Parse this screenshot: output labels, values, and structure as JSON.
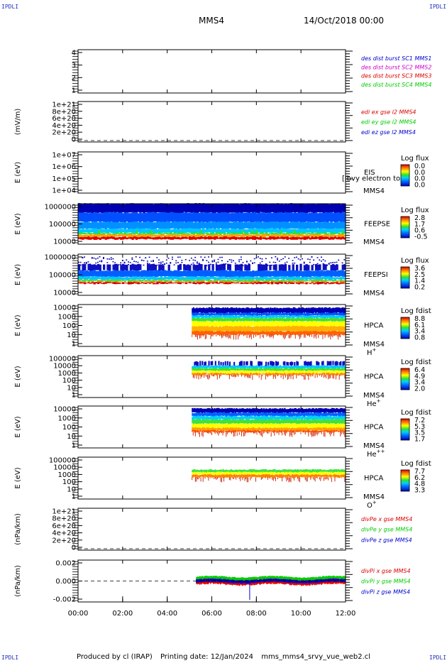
{
  "corner_label": "IPDLI",
  "header": {
    "spacecraft": "MMS4",
    "datetime": "14/Oct/2018 00:00"
  },
  "footer": {
    "produced_by": "Produced by cl (IRAP)",
    "printing_date": "Printing date: 12/Jan/2024",
    "filename": "mms_mms4_srvy_vue_web2.cl"
  },
  "colors": {
    "blue": "#0000cc",
    "magenta": "#cc00cc",
    "red": "#dd0000",
    "green": "#00cc00"
  },
  "chart_data": {
    "type": "stacked-panels",
    "x_range_hours": [
      0,
      12
    ],
    "x_tick_labels": [
      "00:00",
      "02:00",
      "04:00",
      "06:00",
      "08:00",
      "10:00",
      "12:00"
    ],
    "panels": [
      {
        "id": "dist",
        "kind": "line",
        "ylabel": "",
        "y_ticks": [
          "4",
          "3",
          "2",
          "1"
        ],
        "legend": [
          {
            "text": "des dist burst SC1 MMS1",
            "color": "#0000cc"
          },
          {
            "text": "des dist burst SC2 MMS2",
            "color": "#cc00cc"
          },
          {
            "text": "des dist burst SC3 MMS3",
            "color": "#dd0000"
          },
          {
            "text": "des dist burst SC4 MMS4",
            "color": "#00cc00"
          }
        ]
      },
      {
        "id": "edi",
        "kind": "line",
        "ylabel": "(mV/m)",
        "y_ticks": [
          "1e+21",
          "8e+20",
          "6e+20",
          "4e+20",
          "2e+20",
          "0"
        ],
        "zero_line": true,
        "legend": [
          {
            "text": "edi ex gse l2 MMS4",
            "color": "#dd0000"
          },
          {
            "text": "edi ey gse l2 MMS4",
            "color": "#00cc00"
          },
          {
            "text": "edi ez gse l2 MMS4",
            "color": "#0000cc"
          }
        ]
      },
      {
        "id": "eis",
        "kind": "spectrogram",
        "ylabel": "E (eV)",
        "y_ticks": [
          "1e+07",
          "1e+06",
          "1e+05",
          "1e+04"
        ],
        "right_labels": [
          "EIS",
          "MMS4"
        ],
        "overlay_text": "[lbvy electron to",
        "colorbar": {
          "title": "Log flux",
          "ticks": [
            "0.0",
            "0.0",
            "0.0",
            "0.0"
          ]
        }
      },
      {
        "id": "feeps_e",
        "kind": "spectrogram",
        "ylabel": "E (eV)",
        "y_ticks": [
          "1000000",
          "100000",
          "10000"
        ],
        "right_labels": [
          "FEEPSE",
          "MMS4"
        ],
        "data_hours": [
          0.0,
          12.0
        ],
        "colorbar": {
          "title": "Log flux",
          "ticks": [
            "2.8",
            "1.7",
            "0.6",
            "-0.5"
          ]
        }
      },
      {
        "id": "feeps_i",
        "kind": "spectrogram",
        "ylabel": "E (eV)",
        "y_ticks": [
          "1000000",
          "100000",
          "10000"
        ],
        "right_labels": [
          "FEEPSI",
          "MMS4"
        ],
        "data_hours": [
          0.0,
          12.0
        ],
        "colorbar": {
          "title": "Log flux",
          "ticks": [
            "3.6",
            "2.5",
            "1.4",
            "0.2"
          ]
        }
      },
      {
        "id": "hpca_h",
        "kind": "spectrogram",
        "ylabel": "E (eV)",
        "y_ticks": [
          "10000",
          "1000",
          "100",
          "10",
          "1"
        ],
        "right_labels": [
          "HPCA",
          "MMS4"
        ],
        "species": "H",
        "species_sup": "+",
        "data_hours": [
          5.1,
          12.0
        ],
        "colorbar": {
          "title": "Log fdist",
          "ticks": [
            "8.8",
            "6.1",
            "3.4",
            "0.8"
          ]
        }
      },
      {
        "id": "hpca_he1",
        "kind": "spectrogram",
        "ylabel": "E (eV)",
        "y_ticks": [
          "100000",
          "10000",
          "1000",
          "100",
          "10",
          "1"
        ],
        "right_labels": [
          "HPCA",
          "MMS4"
        ],
        "species": "He",
        "species_sup": "+",
        "data_hours": [
          5.1,
          12.0
        ],
        "colorbar": {
          "title": "Log fdist",
          "ticks": [
            "6.4",
            "4.9",
            "3.4",
            "2.0"
          ]
        }
      },
      {
        "id": "hpca_he2",
        "kind": "spectrogram",
        "ylabel": "E (eV)",
        "y_ticks": [
          "10000",
          "1000",
          "100",
          "10",
          "1"
        ],
        "right_labels": [
          "HPCA",
          "MMS4"
        ],
        "species": "He",
        "species_sup": "++",
        "data_hours": [
          5.1,
          12.0
        ],
        "colorbar": {
          "title": "Log fdist",
          "ticks": [
            "7.2",
            "5.3",
            "3.5",
            "1.7"
          ]
        }
      },
      {
        "id": "hpca_o",
        "kind": "spectrogram",
        "ylabel": "E (eV)",
        "y_ticks": [
          "100000",
          "10000",
          "1000",
          "100",
          "10",
          "1"
        ],
        "right_labels": [
          "HPCA",
          "MMS4"
        ],
        "species": "O",
        "species_sup": "+",
        "data_hours": [
          5.1,
          12.0
        ],
        "colorbar": {
          "title": "Log fdist",
          "ticks": [
            "7.7",
            "6.2",
            "4.8",
            "3.3"
          ]
        }
      },
      {
        "id": "divpe",
        "kind": "line",
        "ylabel": "(nPa/km)",
        "y_ticks": [
          "1e+21",
          "8e+20",
          "6e+20",
          "4e+20",
          "2e+20",
          "0"
        ],
        "zero_line": true,
        "legend": [
          {
            "text": "divPe x gse MMS4",
            "color": "#dd0000"
          },
          {
            "text": "divPe y gse MMS4",
            "color": "#00cc00"
          },
          {
            "text": "divPe z gse MMS4",
            "color": "#0000cc"
          }
        ]
      },
      {
        "id": "divpi",
        "kind": "line",
        "ylabel": "(nPa/km)",
        "y_ticks": [
          "0.002",
          "0.000",
          "-0.002"
        ],
        "ylim": [
          -0.003,
          0.003
        ],
        "zero_line": true,
        "data_hours": [
          5.3,
          12.0
        ],
        "legend": [
          {
            "text": "divPi x gse MMS4",
            "color": "#dd0000"
          },
          {
            "text": "divPi y gse MMS4",
            "color": "#00cc00"
          },
          {
            "text": "divPi z gse MMS4",
            "color": "#0000cc"
          }
        ]
      }
    ]
  }
}
